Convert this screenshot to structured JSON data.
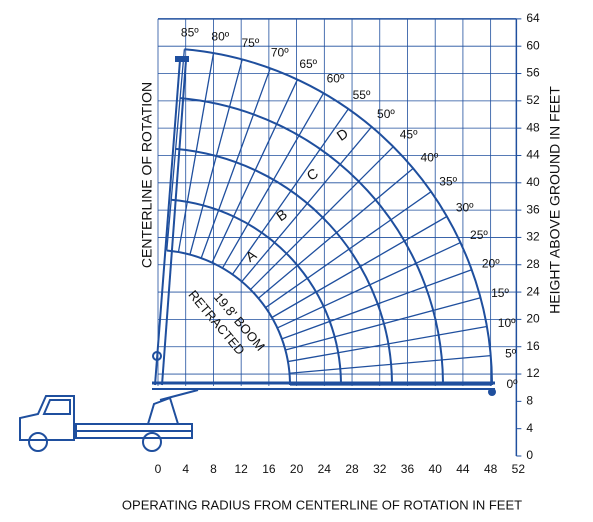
{
  "diagram": {
    "left_label": "CENTERLINE OF ROTATION",
    "right_label": "HEIGHT ABOVE GROUND IN FEET",
    "bottom_label": "OPERATING RADIUS FROM CENTERLINE OF ROTATION IN FEET",
    "boom_note": [
      "19.8' BOOM",
      "RETRACTED"
    ],
    "x_ticks": [
      0,
      4,
      8,
      12,
      16,
      20,
      24,
      28,
      32,
      36,
      40,
      44,
      48,
      52
    ],
    "y_ticks": [
      0,
      4,
      8,
      12,
      16,
      20,
      24,
      28,
      32,
      36,
      40,
      44,
      48,
      52,
      56,
      60,
      64
    ],
    "angle_labels": [
      "0º",
      "5º",
      "10º",
      "15º",
      "20º",
      "25º",
      "30º",
      "35º",
      "40º",
      "45º",
      "50º",
      "55º",
      "60º",
      "65º",
      "70º",
      "75º",
      "80º",
      "85º"
    ],
    "sections": [
      "A",
      "B",
      "C",
      "D"
    ]
  }
}
